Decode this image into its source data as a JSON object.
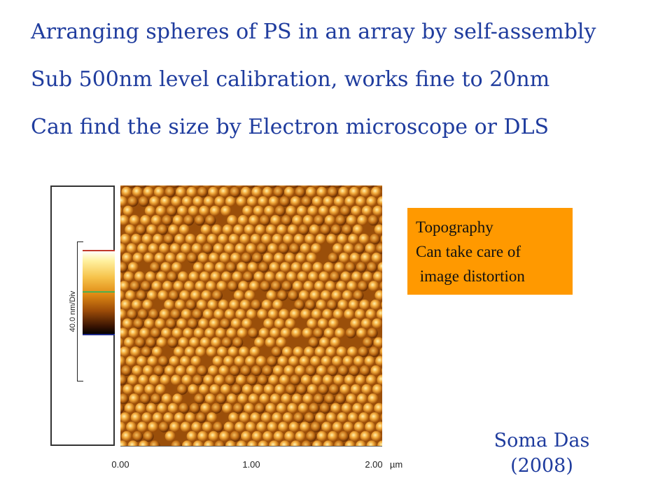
{
  "bullets": [
    "Arranging spheres of PS in an array by self-assembly",
    "Sub 500nm level calibration, works fine to 20nm",
    "Can find the size by Electron microscope or DLS"
  ],
  "figure": {
    "scale_label": "40.0 nm/Div",
    "x_ticks": [
      "0.00",
      "1.00",
      "2.00"
    ],
    "x_unit": "µm"
  },
  "callout": {
    "lines": [
      "Topography",
      "Can take care of",
      " image distortion"
    ],
    "color": "#ff9900"
  },
  "credit": {
    "name": "Soma Das",
    "year": "(2008)"
  },
  "colors": {
    "text_blue": "#1f3c9e"
  }
}
